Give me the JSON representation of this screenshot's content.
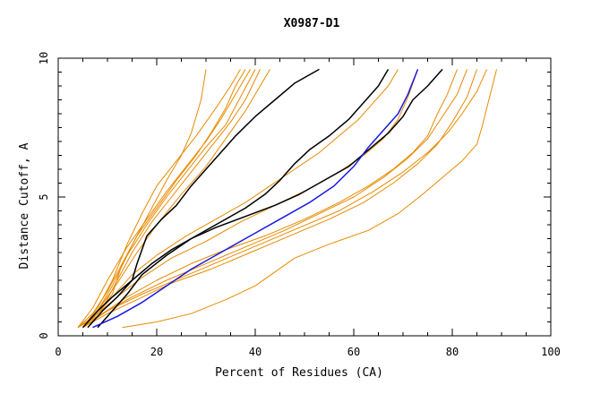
{
  "chart_data": {
    "type": "line",
    "title": "X0987-D1",
    "xlabel": "Percent of Residues (CA)",
    "ylabel": "Distance Cutoff, A",
    "xlim": [
      0,
      100
    ],
    "ylim": [
      0,
      10
    ],
    "x_ticks": [
      "0",
      "20",
      "40",
      "60",
      "80",
      "100"
    ],
    "y_ticks": [
      "0",
      "5",
      "10"
    ],
    "grid": false,
    "colors": {
      "orange": "#e88a00",
      "black": "#000000",
      "blue": "#1a1adf"
    },
    "series": [
      {
        "color": "orange",
        "points": [
          [
            5,
            0.3
          ],
          [
            8,
            0.8
          ],
          [
            11,
            1.5
          ],
          [
            13,
            2.6
          ],
          [
            16,
            3.6
          ],
          [
            19,
            4.6
          ],
          [
            22,
            5.6
          ],
          [
            25,
            6.5
          ],
          [
            27,
            7.3
          ],
          [
            29,
            8.5
          ],
          [
            30,
            9.6
          ]
        ]
      },
      {
        "color": "orange",
        "points": [
          [
            5,
            0.3
          ],
          [
            8,
            1.0
          ],
          [
            11,
            2.0
          ],
          [
            14,
            3.3
          ],
          [
            17,
            4.4
          ],
          [
            20,
            5.4
          ],
          [
            24,
            6.3
          ],
          [
            28,
            7.2
          ],
          [
            32,
            8.2
          ],
          [
            35,
            9.0
          ],
          [
            37,
            9.6
          ]
        ]
      },
      {
        "color": "orange",
        "points": [
          [
            4,
            0.3
          ],
          [
            7,
            0.8
          ],
          [
            10,
            1.6
          ],
          [
            13,
            2.6
          ],
          [
            16,
            3.6
          ],
          [
            20,
            4.6
          ],
          [
            24,
            5.6
          ],
          [
            28,
            6.5
          ],
          [
            31,
            7.3
          ],
          [
            34,
            8.2
          ],
          [
            36,
            9.0
          ],
          [
            38,
            9.6
          ]
        ]
      },
      {
        "color": "orange",
        "points": [
          [
            4,
            0.3
          ],
          [
            7,
            1.0
          ],
          [
            10,
            2.0
          ],
          [
            14,
            3.2
          ],
          [
            18,
            4.2
          ],
          [
            22,
            5.2
          ],
          [
            26,
            6.1
          ],
          [
            30,
            7.0
          ],
          [
            33,
            7.8
          ],
          [
            36,
            8.7
          ],
          [
            39,
            9.6
          ]
        ]
      },
      {
        "color": "orange",
        "points": [
          [
            5,
            0.3
          ],
          [
            8,
            0.9
          ],
          [
            11,
            1.8
          ],
          [
            14,
            2.9
          ],
          [
            18,
            4.0
          ],
          [
            22,
            5.0
          ],
          [
            26,
            5.9
          ],
          [
            30,
            6.8
          ],
          [
            34,
            7.6
          ],
          [
            37,
            8.6
          ],
          [
            40,
            9.6
          ]
        ]
      },
      {
        "color": "orange",
        "points": [
          [
            5,
            0.3
          ],
          [
            9,
            1.0
          ],
          [
            12,
            2.0
          ],
          [
            15,
            3.0
          ],
          [
            19,
            4.1
          ],
          [
            23,
            5.0
          ],
          [
            27,
            5.9
          ],
          [
            31,
            6.8
          ],
          [
            35,
            7.7
          ],
          [
            38,
            8.5
          ],
          [
            41,
            9.6
          ]
        ]
      },
      {
        "color": "orange",
        "points": [
          [
            5,
            0.3
          ],
          [
            8,
            0.9
          ],
          [
            12,
            1.9
          ],
          [
            16,
            3.0
          ],
          [
            20,
            4.0
          ],
          [
            25,
            5.1
          ],
          [
            30,
            6.1
          ],
          [
            34,
            7.1
          ],
          [
            38,
            8.1
          ],
          [
            41,
            9.0
          ],
          [
            43,
            9.6
          ]
        ]
      },
      {
        "color": "orange",
        "points": [
          [
            5,
            0.3
          ],
          [
            8,
            0.8
          ],
          [
            11,
            1.4
          ],
          [
            15,
            2.2
          ],
          [
            20,
            2.9
          ],
          [
            26,
            3.6
          ],
          [
            32,
            4.2
          ],
          [
            38,
            4.8
          ],
          [
            43,
            5.4
          ],
          [
            48,
            6.0
          ],
          [
            53,
            6.6
          ],
          [
            57,
            7.2
          ],
          [
            61,
            7.8
          ],
          [
            64,
            8.4
          ],
          [
            67,
            9.0
          ],
          [
            69,
            9.6
          ]
        ]
      },
      {
        "color": "orange",
        "points": [
          [
            4,
            0.3
          ],
          [
            8,
            0.8
          ],
          [
            12,
            1.4
          ],
          [
            17,
            2.1
          ],
          [
            23,
            2.8
          ],
          [
            30,
            3.4
          ],
          [
            37,
            4.1
          ],
          [
            44,
            4.7
          ],
          [
            51,
            5.3
          ],
          [
            57,
            5.9
          ],
          [
            62,
            6.5
          ],
          [
            66,
            7.1
          ],
          [
            69,
            7.8
          ],
          [
            71,
            8.6
          ],
          [
            73,
            9.6
          ]
        ]
      },
      {
        "color": "orange",
        "points": [
          [
            5,
            0.3
          ],
          [
            9,
            0.8
          ],
          [
            14,
            1.4
          ],
          [
            20,
            2.0
          ],
          [
            27,
            2.6
          ],
          [
            34,
            3.1
          ],
          [
            42,
            3.6
          ],
          [
            50,
            4.2
          ],
          [
            57,
            4.8
          ],
          [
            63,
            5.4
          ],
          [
            68,
            6.0
          ],
          [
            72,
            6.6
          ],
          [
            75,
            7.2
          ],
          [
            77,
            8.0
          ],
          [
            79,
            8.7
          ],
          [
            81,
            9.6
          ]
        ]
      },
      {
        "color": "orange",
        "points": [
          [
            4,
            0.3
          ],
          [
            9,
            0.8
          ],
          [
            15,
            1.4
          ],
          [
            22,
            2.0
          ],
          [
            30,
            2.6
          ],
          [
            38,
            3.2
          ],
          [
            46,
            3.8
          ],
          [
            53,
            4.4
          ],
          [
            60,
            5.0
          ],
          [
            66,
            5.7
          ],
          [
            71,
            6.4
          ],
          [
            75,
            7.1
          ],
          [
            78,
            7.9
          ],
          [
            81,
            8.7
          ],
          [
            83,
            9.6
          ]
        ]
      },
      {
        "color": "orange",
        "points": [
          [
            5,
            0.3
          ],
          [
            10,
            0.8
          ],
          [
            16,
            1.3
          ],
          [
            23,
            1.9
          ],
          [
            31,
            2.4
          ],
          [
            39,
            3.0
          ],
          [
            47,
            3.6
          ],
          [
            55,
            4.2
          ],
          [
            62,
            4.8
          ],
          [
            68,
            5.5
          ],
          [
            73,
            6.2
          ],
          [
            77,
            6.9
          ],
          [
            80,
            7.7
          ],
          [
            83,
            8.6
          ],
          [
            85,
            9.6
          ]
        ]
      },
      {
        "color": "orange",
        "points": [
          [
            5,
            0.3
          ],
          [
            10,
            0.9
          ],
          [
            17,
            1.5
          ],
          [
            25,
            2.1
          ],
          [
            33,
            2.7
          ],
          [
            41,
            3.3
          ],
          [
            49,
            3.9
          ],
          [
            57,
            4.5
          ],
          [
            64,
            5.2
          ],
          [
            70,
            5.9
          ],
          [
            75,
            6.6
          ],
          [
            79,
            7.3
          ],
          [
            82,
            8.0
          ],
          [
            85,
            8.8
          ],
          [
            87,
            9.6
          ]
        ]
      },
      {
        "color": "orange",
        "points": [
          [
            13,
            0.3
          ],
          [
            20,
            0.5
          ],
          [
            27,
            0.8
          ],
          [
            34,
            1.3
          ],
          [
            40,
            1.8
          ],
          [
            44,
            2.3
          ],
          [
            48,
            2.8
          ],
          [
            55,
            3.3
          ],
          [
            63,
            3.8
          ],
          [
            69,
            4.4
          ],
          [
            74,
            5.1
          ],
          [
            78,
            5.7
          ],
          [
            82,
            6.3
          ],
          [
            85,
            6.9
          ],
          [
            86,
            7.5
          ],
          [
            87,
            8.2
          ],
          [
            88,
            8.9
          ],
          [
            89,
            9.6
          ]
        ]
      },
      {
        "color": "black",
        "points": [
          [
            6,
            0.3
          ],
          [
            9,
            0.9
          ],
          [
            12,
            1.4
          ],
          [
            15,
            2.0
          ],
          [
            16,
            2.6
          ],
          [
            18,
            3.6
          ],
          [
            21,
            4.2
          ],
          [
            24,
            4.7
          ],
          [
            27,
            5.4
          ],
          [
            30,
            6.0
          ],
          [
            33,
            6.6
          ],
          [
            36,
            7.2
          ],
          [
            40,
            7.9
          ],
          [
            44,
            8.5
          ],
          [
            48,
            9.1
          ],
          [
            53,
            9.6
          ]
        ]
      },
      {
        "color": "black",
        "points": [
          [
            5,
            0.3
          ],
          [
            8,
            0.9
          ],
          [
            11,
            1.4
          ],
          [
            15,
            2.0
          ],
          [
            19,
            2.6
          ],
          [
            23,
            3.1
          ],
          [
            28,
            3.6
          ],
          [
            33,
            4.1
          ],
          [
            38,
            4.6
          ],
          [
            42,
            5.1
          ],
          [
            45,
            5.6
          ],
          [
            48,
            6.2
          ],
          [
            51,
            6.7
          ],
          [
            55,
            7.2
          ],
          [
            59,
            7.8
          ],
          [
            62,
            8.4
          ],
          [
            65,
            9.0
          ],
          [
            67,
            9.6
          ]
        ]
      },
      {
        "color": "black",
        "points": [
          [
            8,
            0.3
          ],
          [
            11,
            0.9
          ],
          [
            14,
            1.5
          ],
          [
            17,
            2.2
          ],
          [
            22,
            2.9
          ],
          [
            27,
            3.5
          ],
          [
            32,
            3.9
          ],
          [
            38,
            4.3
          ],
          [
            44,
            4.7
          ],
          [
            49,
            5.1
          ],
          [
            54,
            5.6
          ],
          [
            59,
            6.1
          ],
          [
            63,
            6.7
          ],
          [
            67,
            7.3
          ],
          [
            70,
            7.9
          ],
          [
            72,
            8.5
          ],
          [
            75,
            9.0
          ],
          [
            78,
            9.6
          ]
        ]
      },
      {
        "color": "blue",
        "points": [
          [
            7,
            0.3
          ],
          [
            12,
            0.7
          ],
          [
            17,
            1.2
          ],
          [
            22,
            1.8
          ],
          [
            27,
            2.4
          ],
          [
            33,
            3.0
          ],
          [
            39,
            3.6
          ],
          [
            45,
            4.2
          ],
          [
            51,
            4.8
          ],
          [
            56,
            5.4
          ],
          [
            60,
            6.1
          ],
          [
            63,
            6.8
          ],
          [
            66,
            7.4
          ],
          [
            69,
            8.0
          ],
          [
            71,
            8.7
          ],
          [
            73,
            9.6
          ]
        ]
      }
    ]
  }
}
